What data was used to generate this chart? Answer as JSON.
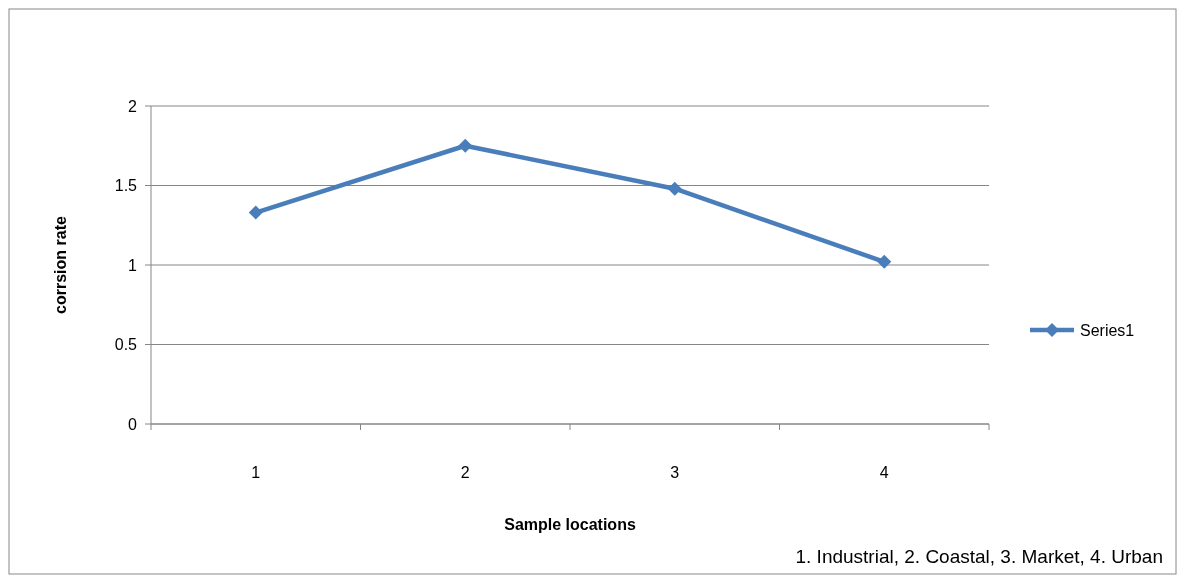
{
  "chart_data": {
    "type": "line",
    "xlabel": "Sample locations",
    "ylabel": "corrsion rate",
    "categories": [
      "1",
      "2",
      "3",
      "4"
    ],
    "series": [
      {
        "name": "Series1",
        "color": "#4a7ebb",
        "values": [
          1.33,
          1.75,
          1.48,
          1.02
        ]
      }
    ],
    "ylim": [
      0,
      2
    ],
    "yticks": [
      0,
      0.5,
      1,
      1.5,
      2
    ],
    "grid": "y",
    "legend": "right",
    "marker": "diamond",
    "line_style": "solid",
    "annotations": [
      "1. Industrial, 2. Coastal, 3. Market, 4. Urban"
    ]
  }
}
